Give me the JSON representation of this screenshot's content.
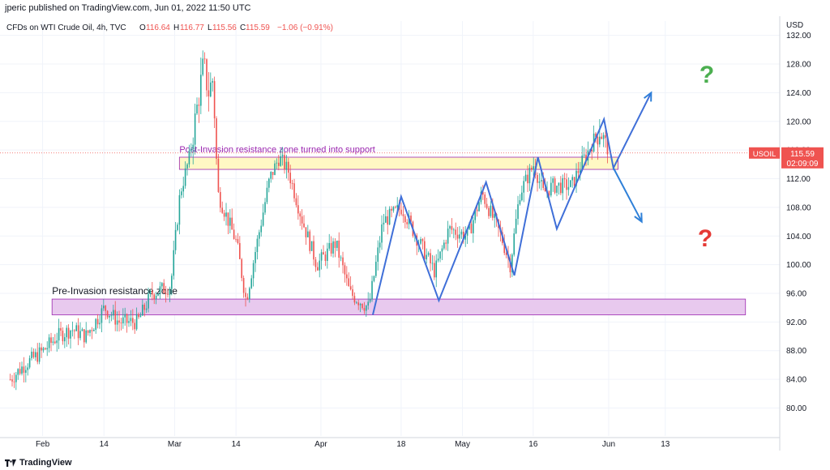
{
  "header": {
    "published": "jperic published on TradingView.com, Jun 01, 2022 11:50 UTC"
  },
  "legend": {
    "symbol": "CFDs on WTI Crude Oil, 4h, TVC",
    "o_label": "O",
    "o_value": "116.64",
    "h_label": "H",
    "h_value": "116.77",
    "l_label": "L",
    "l_value": "115.56",
    "c_label": "C",
    "c_value": "115.59",
    "change": "−1.06 (−0.91%)"
  },
  "footer": {
    "brand": "TradingView"
  },
  "colors": {
    "up": "#26a69a",
    "down": "#ef5350",
    "zone_top_fill": "#fff8c4",
    "zone_bottom_fill": "#e8c9ee",
    "zone_border": "#9c27b0",
    "wave": "#3f6fd8",
    "arrow": "#2f80d8",
    "q_up": "#4caf50",
    "q_down": "#e53935"
  },
  "chart_data": {
    "type": "candlestick",
    "title": "CFDs on WTI Crude Oil, 4h, TVC",
    "currency_label": "USD",
    "ylim": [
      77,
      134
    ],
    "y_ticks": [
      "132.00",
      "128.00",
      "124.00",
      "120.00",
      "116.00",
      "112.00",
      "108.00",
      "104.00",
      "100.00",
      "96.00",
      "92.00",
      "88.00",
      "84.00",
      "80.00"
    ],
    "x_ticks": [
      {
        "label": "Feb",
        "day": "Feb 1"
      },
      {
        "label": "14",
        "day": "Feb 14"
      },
      {
        "label": "Mar",
        "day": "Mar 1"
      },
      {
        "label": "14",
        "day": "Mar 14"
      },
      {
        "label": "Apr",
        "day": "Apr 1"
      },
      {
        "label": "18",
        "day": "Apr 18"
      },
      {
        "label": "May",
        "day": "May 1"
      },
      {
        "label": "16",
        "day": "May 16"
      },
      {
        "label": "Jun",
        "day": "Jun 1"
      },
      {
        "label": "13",
        "day": "Jun 13"
      }
    ],
    "price_path": [
      [
        "Jan 25",
        84
      ],
      [
        "Jan 28",
        86
      ],
      [
        "Feb 1",
        88
      ],
      [
        "Feb 4",
        90
      ],
      [
        "Feb 7",
        91
      ],
      [
        "Feb 10",
        90
      ],
      [
        "Feb 14",
        94
      ],
      [
        "Feb 17",
        92
      ],
      [
        "Feb 21",
        92
      ],
      [
        "Feb 24",
        96
      ],
      [
        "Feb 28",
        97
      ],
      [
        "Mar 2",
        110
      ],
      [
        "Mar 4",
        115
      ],
      [
        "Mar 7",
        128
      ],
      [
        "Mar 8",
        124
      ],
      [
        "Mar 9",
        126
      ],
      [
        "Mar 10",
        110
      ],
      [
        "Mar 14",
        103
      ],
      [
        "Mar 16",
        95
      ],
      [
        "Mar 18",
        102
      ],
      [
        "Mar 21",
        112
      ],
      [
        "Mar 23",
        115
      ],
      [
        "Mar 25",
        113
      ],
      [
        "Mar 28",
        106
      ],
      [
        "Mar 31",
        100
      ],
      [
        "Apr 4",
        103
      ],
      [
        "Apr 7",
        96
      ],
      [
        "Apr 11",
        94
      ],
      [
        "Apr 14",
        106
      ],
      [
        "Apr 18",
        108
      ],
      [
        "Apr 21",
        104
      ],
      [
        "Apr 25",
        99
      ],
      [
        "Apr 28",
        105
      ],
      [
        "May 2",
        104
      ],
      [
        "May 5",
        110
      ],
      [
        "May 9",
        104
      ],
      [
        "May 11",
        100
      ],
      [
        "May 13",
        110
      ],
      [
        "May 16",
        114
      ],
      [
        "May 18",
        110
      ],
      [
        "May 20",
        111
      ],
      [
        "May 24",
        111
      ],
      [
        "May 26",
        114
      ],
      [
        "May 30",
        119
      ],
      [
        "Jun 1",
        115.6
      ]
    ],
    "last_price": {
      "symbol": "USOIL",
      "value": "115.59",
      "countdown": "02:09:09"
    },
    "zones": [
      {
        "name": "Post-Invasion resistance zone turned into support",
        "from": "Mar 2",
        "to": "Jun 3",
        "y_low": 113.3,
        "y_high": 115.0
      },
      {
        "name": "Pre-Invasion resistance zone",
        "from": "Feb 3",
        "to": "Jun 30",
        "y_low": 93.0,
        "y_high": 95.2
      }
    ],
    "wave_points": [
      [
        "Apr 12",
        93.0
      ],
      [
        "Apr 18",
        109.5
      ],
      [
        "Apr 26",
        95.0
      ],
      [
        "May 6",
        111.5
      ],
      [
        "May 12",
        98.5
      ],
      [
        "May 17",
        115.0
      ],
      [
        "May 21",
        105.0
      ],
      [
        "May 31",
        120.3
      ],
      [
        "Jun 2",
        113.5
      ],
      [
        "Jun 10",
        124.0
      ]
    ],
    "projection_down": [
      [
        "Jun 2",
        113.5
      ],
      [
        "Jun 8",
        106.0
      ]
    ],
    "annotations": [
      "?",
      "?"
    ]
  }
}
